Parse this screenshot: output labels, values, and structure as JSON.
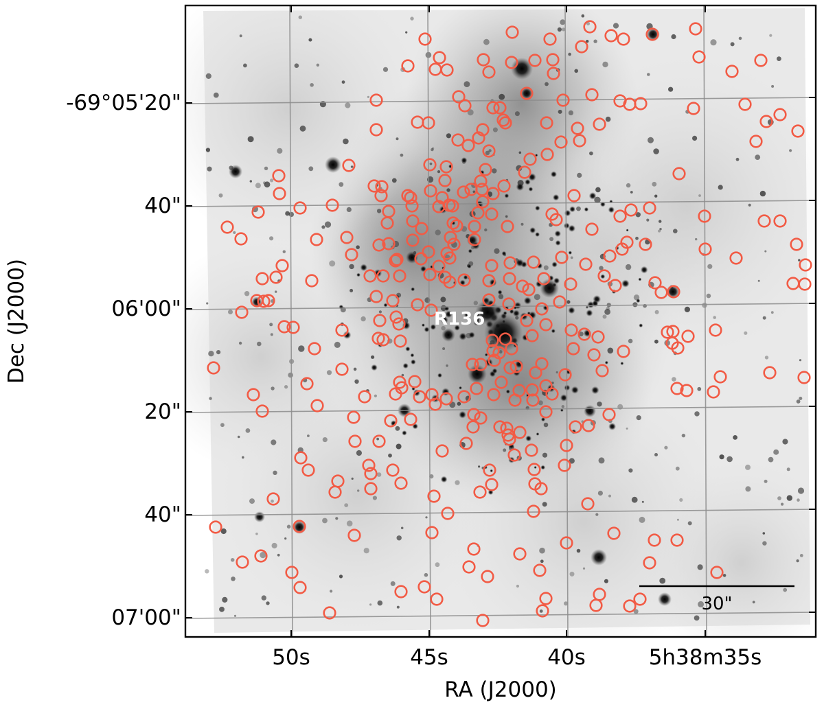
{
  "figure": {
    "ra_axis_label": "RA (J2000)",
    "dec_axis_label": "Dec (J2000)",
    "ra_ticks": [
      "50s",
      "45s",
      "40s",
      "5h38m35s"
    ],
    "dec_ticks": [
      "-69°05'20\"",
      "40\"",
      "06'00\"",
      "20\"",
      "40\"",
      "07'00\""
    ],
    "cluster_label": "R136",
    "scale_bar_label": "30\"",
    "marker_color": "#f25b45",
    "image_colormap": "inverted-gray"
  }
}
